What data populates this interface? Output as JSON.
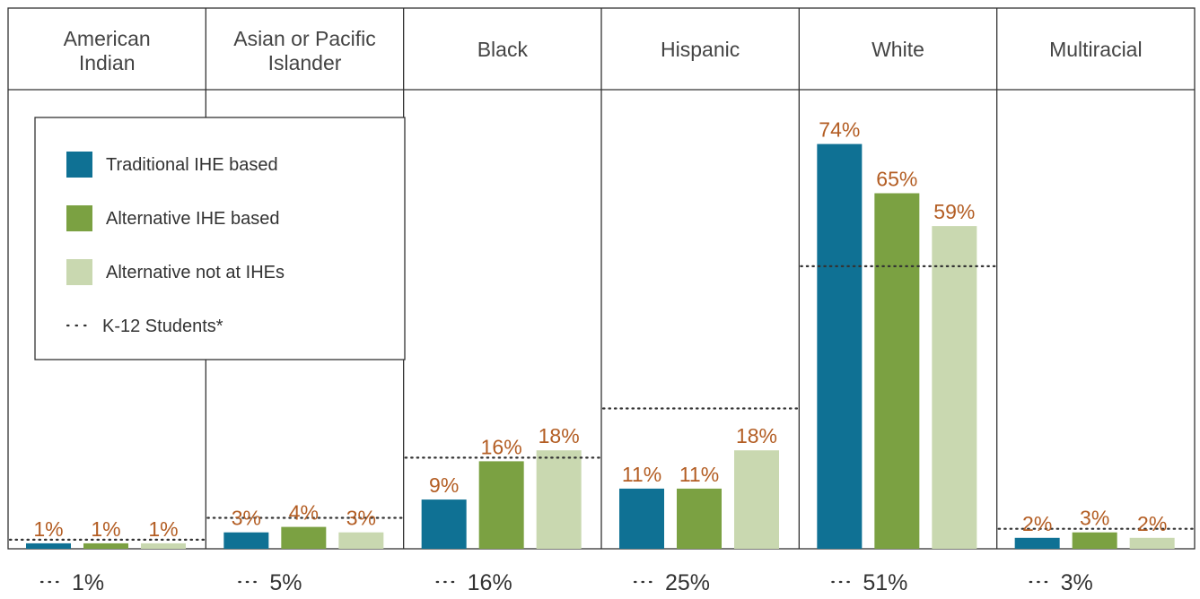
{
  "colors": {
    "traditional": "#0f7194",
    "alternative_ihe": "#7ba142",
    "alternative_not": "#c9d8b0",
    "value_label": "#b35d23",
    "border": "#333333",
    "k12_line": "#333333"
  },
  "chart_data": {
    "type": "bar",
    "categories": [
      {
        "name": "American Indian",
        "lines": [
          "American",
          "Indian"
        ]
      },
      {
        "name": "Asian or Pacific Islander",
        "lines": [
          "Asian or Pacific",
          "Islander"
        ]
      },
      {
        "name": "Black",
        "lines": [
          "Black"
        ]
      },
      {
        "name": "Hispanic",
        "lines": [
          "Hispanic"
        ]
      },
      {
        "name": "White",
        "lines": [
          "White"
        ]
      },
      {
        "name": "Multiracial",
        "lines": [
          "Multiracial"
        ]
      }
    ],
    "series": [
      {
        "name": "Traditional IHE based",
        "color_key": "traditional",
        "values": [
          1,
          3,
          9,
          11,
          74,
          2
        ]
      },
      {
        "name": "Alternative IHE based",
        "color_key": "alternative_ihe",
        "values": [
          1,
          4,
          16,
          11,
          65,
          3
        ]
      },
      {
        "name": "Alternative not at IHEs",
        "color_key": "alternative_not",
        "values": [
          1,
          3,
          18,
          18,
          59,
          2
        ]
      }
    ],
    "k12_students": {
      "name": "K-12 Students*",
      "values": [
        1,
        5,
        16,
        25,
        51,
        3
      ],
      "labels": [
        "1%",
        "5%",
        "16%",
        "25%",
        "51%",
        "3%"
      ],
      "style": "dotted"
    },
    "value_suffix": "%",
    "ylim": [
      0,
      80
    ],
    "grid": false,
    "legend": {
      "placement": "top-left",
      "items": [
        {
          "label": "Traditional IHE based",
          "color_key": "traditional",
          "kind": "swatch"
        },
        {
          "label": "Alternative IHE based",
          "color_key": "alternative_ihe",
          "kind": "swatch"
        },
        {
          "label": "Alternative not at IHEs",
          "color_key": "alternative_not",
          "kind": "swatch"
        },
        {
          "label": "K-12 Students*",
          "color_key": "k12_line",
          "kind": "dots"
        }
      ]
    }
  }
}
